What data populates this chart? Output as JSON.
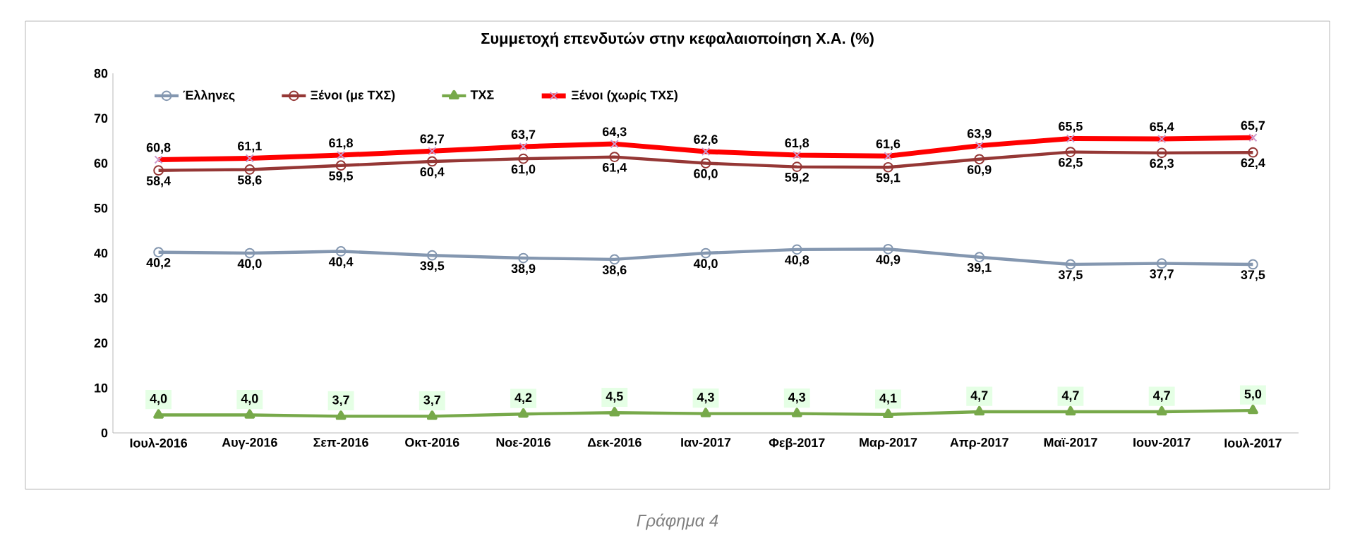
{
  "chart_data": {
    "type": "line",
    "title": "Συμμετοχή επενδυτών στην κεφαλαιοποίηση Χ.Α. (%)",
    "categories": [
      "Ιουλ-2016",
      "Αυγ-2016",
      "Σεπ-2016",
      "Οκτ-2016",
      "Νοε-2016",
      "Δεκ-2016",
      "Ιαν-2017",
      "Φεβ-2017",
      "Μαρ-2017",
      "Απρ-2017",
      "Μαϊ-2017",
      "Ιουν-2017",
      "Ιουλ-2017"
    ],
    "ylim": [
      0,
      80
    ],
    "yticks": [
      0,
      10,
      20,
      30,
      40,
      50,
      60,
      70,
      80
    ],
    "grid": false,
    "legend": "top",
    "annotations": [
      "Γράφημα 4"
    ],
    "series": [
      {
        "name": "Έλληνες",
        "color": "#8497b0",
        "marker": "circle",
        "values": [
          40.2,
          40.0,
          40.4,
          39.5,
          38.9,
          38.6,
          40.0,
          40.8,
          40.9,
          39.1,
          37.5,
          37.7,
          37.5
        ],
        "value_labels": [
          "40,2",
          "40,0",
          "40,4",
          "39,5",
          "38,9",
          "38,6",
          "40,0",
          "40,8",
          "40,9",
          "39,1",
          "37,5",
          "37,7",
          "37,5"
        ]
      },
      {
        "name": "Ξένοι (με ΤΧΣ)",
        "color": "#953735",
        "marker": "circle",
        "values": [
          58.4,
          58.6,
          59.5,
          60.4,
          61.0,
          61.4,
          60.0,
          59.2,
          59.1,
          60.9,
          62.5,
          62.3,
          62.4
        ],
        "value_labels": [
          "58,4",
          "58,6",
          "59,5",
          "60,4",
          "61,0",
          "61,4",
          "60,0",
          "59,2",
          "59,1",
          "60,9",
          "62,5",
          "62,3",
          "62,4"
        ]
      },
      {
        "name": "ΤΧΣ",
        "color": "#77a94a",
        "marker": "triangle",
        "values": [
          4.0,
          4.0,
          3.7,
          3.7,
          4.2,
          4.5,
          4.3,
          4.3,
          4.1,
          4.7,
          4.7,
          4.7,
          5.0
        ],
        "value_labels": [
          "4,0",
          "4,0",
          "3,7",
          "3,7",
          "4,2",
          "4,5",
          "4,3",
          "4,3",
          "4,1",
          "4,7",
          "4,7",
          "4,7",
          "5,0"
        ]
      },
      {
        "name": "Ξένοι (χωρίς ΤΧΣ)",
        "color": "#ff0000",
        "marker": "cross",
        "values": [
          60.8,
          61.1,
          61.8,
          62.7,
          63.7,
          64.3,
          62.6,
          61.8,
          61.6,
          63.9,
          65.5,
          65.4,
          65.7
        ],
        "value_labels": [
          "60,8",
          "61,1",
          "61,8",
          "62,7",
          "63,7",
          "64,3",
          "62,6",
          "61,8",
          "61,6",
          "63,9",
          "65,5",
          "65,4",
          "65,7"
        ]
      }
    ]
  }
}
